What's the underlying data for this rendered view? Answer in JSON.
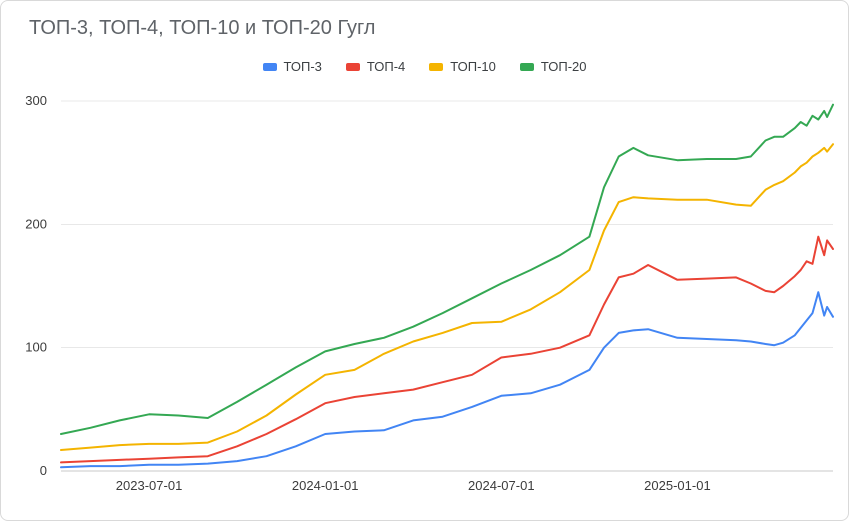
{
  "chart_data": {
    "type": "line",
    "title": "ТОП-3, ТОП-4, ТОП-10 и ТОП-20 Гугл",
    "legend_position": "top",
    "grid": true,
    "ylim": [
      0,
      300
    ],
    "y_ticks": [
      0,
      100,
      200,
      300
    ],
    "x_unit": "months since 2023-04-01",
    "x_ticks": [
      {
        "x": 3,
        "label": "2023-07-01"
      },
      {
        "x": 9,
        "label": "2024-01-01"
      },
      {
        "x": 15,
        "label": "2024-07-01"
      },
      {
        "x": 21,
        "label": "2025-01-01"
      }
    ],
    "x": [
      0,
      1,
      2,
      3,
      4,
      5,
      6,
      7,
      8,
      9,
      10,
      11,
      12,
      13,
      14,
      15,
      16,
      17,
      18,
      18.5,
      19,
      19.5,
      20,
      21,
      22,
      23,
      23.5,
      24,
      24.3,
      24.6,
      25,
      25.2,
      25.4,
      25.6,
      25.8,
      26,
      26.1,
      26.3
    ],
    "series": [
      {
        "name": "ТОП-3",
        "color": "#4285f4",
        "values": [
          3,
          4,
          4,
          5,
          5,
          6,
          8,
          12,
          20,
          30,
          32,
          33,
          41,
          44,
          52,
          61,
          63,
          70,
          82,
          100,
          112,
          114,
          115,
          108,
          107,
          106,
          105,
          103,
          102,
          104,
          110,
          116,
          122,
          128,
          145,
          126,
          133,
          125
        ]
      },
      {
        "name": "ТОП-4",
        "color": "#ea4335",
        "values": [
          7,
          8,
          9,
          10,
          11,
          12,
          20,
          30,
          42,
          55,
          60,
          63,
          66,
          72,
          78,
          92,
          95,
          100,
          110,
          135,
          157,
          160,
          167,
          155,
          156,
          157,
          152,
          146,
          145,
          150,
          158,
          163,
          170,
          168,
          190,
          175,
          187,
          180
        ]
      },
      {
        "name": "ТОП-10",
        "color": "#f4b400",
        "values": [
          17,
          19,
          21,
          22,
          22,
          23,
          32,
          45,
          62,
          78,
          82,
          95,
          105,
          112,
          120,
          121,
          131,
          145,
          163,
          195,
          218,
          222,
          221,
          220,
          220,
          216,
          215,
          228,
          232,
          235,
          242,
          247,
          250,
          255,
          258,
          262,
          259,
          265
        ]
      },
      {
        "name": "ТОП-20",
        "color": "#34a853",
        "values": [
          30,
          35,
          41,
          46,
          45,
          43,
          56,
          70,
          84,
          97,
          103,
          108,
          117,
          128,
          140,
          152,
          163,
          175,
          190,
          230,
          255,
          262,
          256,
          252,
          253,
          253,
          255,
          268,
          271,
          271,
          278,
          283,
          280,
          288,
          285,
          292,
          287,
          297
        ]
      }
    ],
    "colors": {
      "gridline": "#e8e8e8",
      "baseline": "#c9c9c9",
      "axis_label": "#3c3c3c",
      "title": "#5f6368"
    }
  }
}
